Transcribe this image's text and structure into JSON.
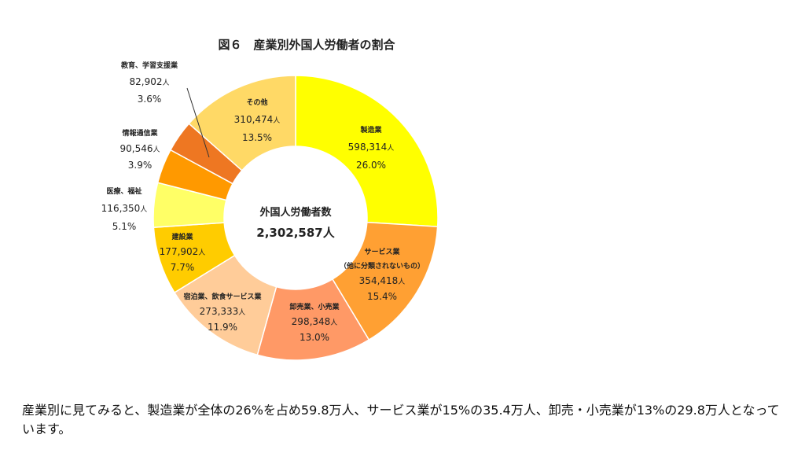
{
  "chart_data": {
    "type": "pie",
    "title": "図６　産業別外国人労働者の割合",
    "center": {
      "label": "外国人労働者数",
      "value": "2,302,587人"
    },
    "unit": "人",
    "slices": [
      {
        "label": "製造業",
        "value": 598314,
        "value_text": "598,314",
        "percent": "26.0%",
        "color": "#ffff00"
      },
      {
        "label": "サービス業",
        "label2": "（他に分類されないもの）",
        "value": 354418,
        "value_text": "354,418",
        "percent": "15.4%",
        "color": "#ffa033"
      },
      {
        "label": "卸売業、小売業",
        "value": 298348,
        "value_text": "298,348",
        "percent": "13.0%",
        "color": "#ff9966"
      },
      {
        "label": "宿泊業、飲食サービス業",
        "value": 273333,
        "value_text": "273,333",
        "percent": "11.9%",
        "color": "#ffcc99"
      },
      {
        "label": "建設業",
        "value": 177902,
        "value_text": "177,902",
        "percent": "7.7%",
        "color": "#ffcc00"
      },
      {
        "label": "医療、福祉",
        "value": 116350,
        "value_text": "116,350",
        "percent": "5.1%",
        "color": "#ffff66"
      },
      {
        "label": "情報通信業",
        "value": 90546,
        "value_text": "90,546",
        "percent": "3.9%",
        "color": "#ff9900"
      },
      {
        "label": "教育、学習支援業",
        "value": 82902,
        "value_text": "82,902",
        "percent": "3.6%",
        "color": "#ee7722"
      },
      {
        "label": "その他",
        "value": 310474,
        "value_text": "310,474",
        "percent": "13.5%",
        "color": "#ffd966"
      }
    ]
  },
  "caption": "産業別に見てみると、製造業が全体の26%を占め59.8万人、サービス業が15%の35.4万人、卸売・小売業が13%の29.8万人となっています。"
}
